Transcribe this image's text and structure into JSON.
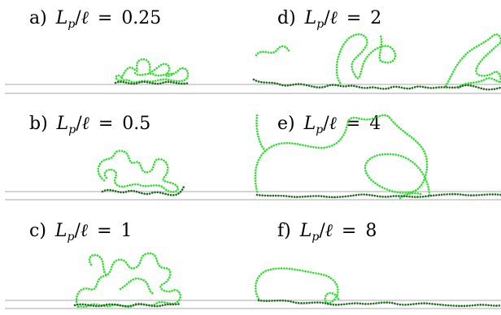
{
  "figure": {
    "panels": [
      {
        "id": "a",
        "prefix": "a)",
        "ratio_value": "0.25"
      },
      {
        "id": "d",
        "prefix": "d)",
        "ratio_value": "2"
      },
      {
        "id": "b",
        "prefix": "b)",
        "ratio_value": "0.5"
      },
      {
        "id": "e",
        "prefix": "e)",
        "ratio_value": "4"
      },
      {
        "id": "c",
        "prefix": "c)",
        "ratio_value": "1"
      },
      {
        "id": "f",
        "prefix": "f)",
        "ratio_value": "8"
      }
    ],
    "label_parts": {
      "L": "L",
      "p": "p",
      "slash": "/",
      "ell": "ℓ",
      "eq": "="
    },
    "colors": {
      "surface_line": "#aaaaaa",
      "light_chain": "#33dd33",
      "dark_chain": "#1f6b1f"
    }
  }
}
